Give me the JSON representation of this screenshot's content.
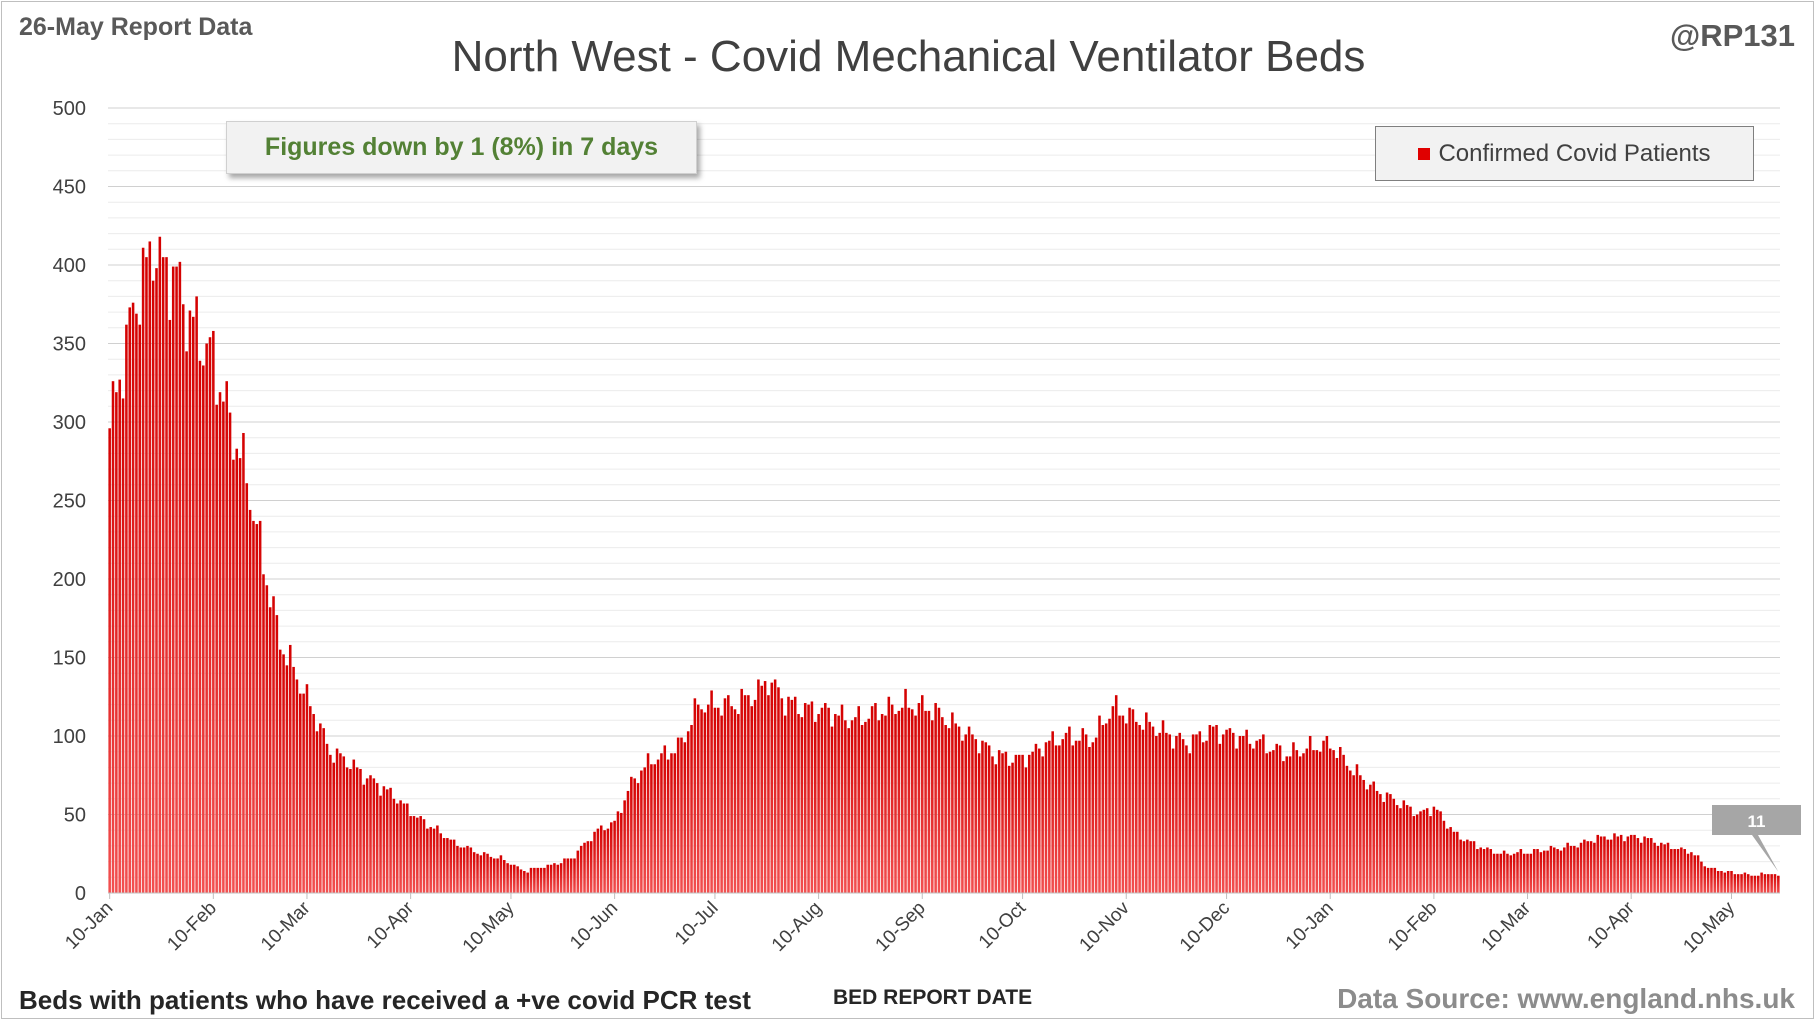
{
  "header": {
    "report_date": "26-May Report Data",
    "handle": "@RP131"
  },
  "footer": {
    "note": "Beds with patients who have received a +ve covid PCR test",
    "source": "Data Source: www.england.nhs.uk"
  },
  "callout_text": "Figures down by 1 (8%) in 7 days",
  "colors": {
    "bar": "#d40000",
    "bar_light": "#f25050",
    "callout_text": "#538135",
    "grid": "#d9d9d9",
    "label_box": "#a6a6a6"
  },
  "chart_data": {
    "type": "bar",
    "title": "North West - Covid Mechanical Ventilator Beds",
    "xlabel": "BED REPORT DATE",
    "ylabel": "",
    "ylim": [
      0,
      500
    ],
    "yticks": [
      0,
      50,
      100,
      150,
      200,
      250,
      300,
      350,
      400,
      450,
      500
    ],
    "grid": true,
    "legend_position": "top-right",
    "x_start": "2021-01-10",
    "x_end": "2022-05-24",
    "xtick_labels": [
      "10-Jan",
      "10-Feb",
      "10-Mar",
      "10-Apr",
      "10-May",
      "10-Jun",
      "10-Jul",
      "10-Aug",
      "10-Sep",
      "10-Oct",
      "10-Nov",
      "10-Dec",
      "10-Jan",
      "10-Feb",
      "10-Mar",
      "10-Apr",
      "10-May"
    ],
    "xtick_dates": [
      "2021-01-10",
      "2021-02-10",
      "2021-03-10",
      "2021-04-10",
      "2021-05-10",
      "2021-06-10",
      "2021-07-10",
      "2021-08-10",
      "2021-09-10",
      "2021-10-10",
      "2021-11-10",
      "2021-12-10",
      "2022-01-10",
      "2022-02-10",
      "2022-03-10",
      "2022-04-10",
      "2022-05-10"
    ],
    "series": [
      {
        "name": "Confirmed Covid Patients",
        "anchors": [
          [
            "2021-01-10",
            296
          ],
          [
            "2021-01-14",
            340
          ],
          [
            "2021-01-18",
            380
          ],
          [
            "2021-01-22",
            403
          ],
          [
            "2021-01-23",
            416
          ],
          [
            "2021-01-26",
            395
          ],
          [
            "2021-01-29",
            397
          ],
          [
            "2021-02-03",
            365
          ],
          [
            "2021-02-10",
            340
          ],
          [
            "2021-02-15",
            300
          ],
          [
            "2021-02-20",
            265
          ],
          [
            "2021-02-25",
            210
          ],
          [
            "2021-03-02",
            160
          ],
          [
            "2021-03-07",
            138
          ],
          [
            "2021-03-13",
            110
          ],
          [
            "2021-03-17",
            90
          ],
          [
            "2021-03-22",
            84
          ],
          [
            "2021-03-27",
            75
          ],
          [
            "2021-04-05",
            62
          ],
          [
            "2021-04-12",
            48
          ],
          [
            "2021-04-18",
            40
          ],
          [
            "2021-04-23",
            32
          ],
          [
            "2021-04-30",
            26
          ],
          [
            "2021-05-07",
            22
          ],
          [
            "2021-05-14",
            14
          ],
          [
            "2021-05-21",
            17
          ],
          [
            "2021-05-28",
            22
          ],
          [
            "2021-06-05",
            40
          ],
          [
            "2021-06-10",
            45
          ],
          [
            "2021-06-15",
            70
          ],
          [
            "2021-06-20",
            83
          ],
          [
            "2021-06-25",
            88
          ],
          [
            "2021-06-30",
            95
          ],
          [
            "2021-07-05",
            120
          ],
          [
            "2021-07-10",
            120
          ],
          [
            "2021-07-16",
            120
          ],
          [
            "2021-07-23",
            128
          ],
          [
            "2021-07-26",
            136
          ],
          [
            "2021-07-31",
            122
          ],
          [
            "2021-08-05",
            118
          ],
          [
            "2021-08-12",
            116
          ],
          [
            "2021-08-20",
            110
          ],
          [
            "2021-08-27",
            115
          ],
          [
            "2021-09-05",
            120
          ],
          [
            "2021-09-12",
            118
          ],
          [
            "2021-09-19",
            108
          ],
          [
            "2021-09-26",
            98
          ],
          [
            "2021-10-02",
            88
          ],
          [
            "2021-10-10",
            85
          ],
          [
            "2021-10-17",
            95
          ],
          [
            "2021-10-24",
            100
          ],
          [
            "2021-10-31",
            98
          ],
          [
            "2021-11-06",
            118
          ],
          [
            "2021-11-14",
            110
          ],
          [
            "2021-11-21",
            103
          ],
          [
            "2021-11-28",
            95
          ],
          [
            "2021-12-06",
            104
          ],
          [
            "2021-12-13",
            100
          ],
          [
            "2021-12-20",
            96
          ],
          [
            "2021-12-28",
            88
          ],
          [
            "2022-01-03",
            92
          ],
          [
            "2022-01-10",
            95
          ],
          [
            "2022-01-17",
            78
          ],
          [
            "2022-01-24",
            65
          ],
          [
            "2022-01-31",
            57
          ],
          [
            "2022-02-06",
            50
          ],
          [
            "2022-02-10",
            55
          ],
          [
            "2022-02-16",
            38
          ],
          [
            "2022-02-23",
            30
          ],
          [
            "2022-03-02",
            25
          ],
          [
            "2022-03-10",
            26
          ],
          [
            "2022-03-17",
            28
          ],
          [
            "2022-03-24",
            30
          ],
          [
            "2022-03-31",
            35
          ],
          [
            "2022-04-07",
            36
          ],
          [
            "2022-04-14",
            35
          ],
          [
            "2022-04-21",
            30
          ],
          [
            "2022-04-28",
            26
          ],
          [
            "2022-05-03",
            16
          ],
          [
            "2022-05-10",
            13
          ],
          [
            "2022-05-17",
            11
          ],
          [
            "2022-05-22",
            13
          ],
          [
            "2022-05-24",
            11
          ]
        ]
      }
    ],
    "last_value_label": "11"
  }
}
